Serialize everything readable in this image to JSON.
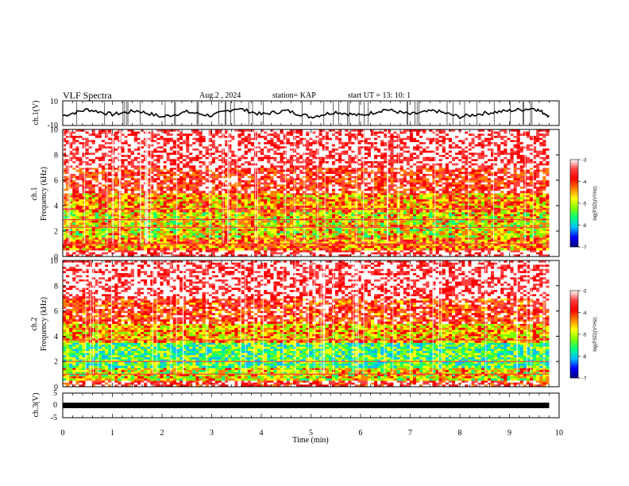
{
  "header": {
    "title": "VLF Spectra",
    "date": "Aug.2  , 2024",
    "station": "station= KAP",
    "start": "start  UT  =   13: 10: 1"
  },
  "colors": {
    "spectrogram_scale": [
      "#000080",
      "#0000ff",
      "#00bfff",
      "#00ff80",
      "#80ff00",
      "#ffff00",
      "#ff8000",
      "#ff0000",
      "#ff4040",
      "#ffffff"
    ],
    "trace": "#000000"
  },
  "chart_data": [
    {
      "id": "ch1-voltage",
      "type": "line",
      "ylabel": "ch.1(V)",
      "ylim": [
        -10,
        10
      ],
      "yticks": [
        "10",
        "-10"
      ],
      "x_range_min": [
        0,
        9.8
      ],
      "series": [
        {
          "x_min": [
            0,
            0.5,
            1,
            1.5,
            2,
            2.5,
            3,
            3.5,
            4,
            4.5,
            5,
            5.5,
            6,
            6.5,
            7,
            7.5,
            8,
            8.5,
            9,
            9.5,
            9.8
          ],
          "values": [
            -2,
            3,
            -1,
            2,
            -3,
            1,
            -2,
            4,
            -1,
            2,
            -3,
            1,
            -2,
            3,
            -1,
            2,
            -3,
            0,
            2,
            4,
            -2
          ]
        }
      ]
    },
    {
      "id": "ch1-spectrogram",
      "type": "heatmap",
      "ylabel": "ch.1\nFrequency  (kHz)",
      "ylim": [
        0,
        10
      ],
      "yticks": [
        "0",
        "2",
        "4",
        "6",
        "8",
        "10"
      ],
      "colorbar": {
        "label": "log(PSD)(V²/Hz)",
        "range": [
          -7,
          -3
        ],
        "ticks": [
          "-3",
          "-4",
          "-5",
          "-6",
          "-7"
        ]
      },
      "bands_kHz": [
        {
          "from": 0,
          "to": 0.5,
          "log_psd": -3.3
        },
        {
          "from": 0.5,
          "to": 1.5,
          "log_psd": -4.3
        },
        {
          "from": 1.5,
          "to": 3.5,
          "log_psd": -4.8
        },
        {
          "from": 3.5,
          "to": 5.0,
          "log_psd": -4.4
        },
        {
          "from": 5.0,
          "to": 7.0,
          "log_psd": -3.8
        },
        {
          "from": 7.0,
          "to": 10.0,
          "log_psd": -3.4
        }
      ],
      "lines_kHz": [
        1.0,
        2.3,
        2.9,
        3.7
      ]
    },
    {
      "id": "ch2-spectrogram",
      "type": "heatmap",
      "ylabel": "ch.2\nFrequency  (kHz)",
      "ylim": [
        0,
        10
      ],
      "yticks": [
        "0",
        "2",
        "4",
        "6",
        "8",
        "10"
      ],
      "colorbar": {
        "label": "log(PSD)(V²/Hz)",
        "range": [
          -7,
          -3
        ],
        "ticks": [
          "-3",
          "-4",
          "-5",
          "-6",
          "-7"
        ]
      },
      "bands_kHz": [
        {
          "from": 0,
          "to": 0.5,
          "log_psd": -3.6
        },
        {
          "from": 0.5,
          "to": 1.5,
          "log_psd": -4.8
        },
        {
          "from": 1.5,
          "to": 3.5,
          "log_psd": -5.4
        },
        {
          "from": 3.5,
          "to": 5.0,
          "log_psd": -4.6
        },
        {
          "from": 5.0,
          "to": 7.0,
          "log_psd": -3.9
        },
        {
          "from": 7.0,
          "to": 10.0,
          "log_psd": -3.4
        }
      ],
      "lines_kHz": [
        1.0,
        2.0,
        3.7
      ]
    },
    {
      "id": "ch3-voltage",
      "type": "line",
      "ylabel": "ch.3(V)",
      "ylim": [
        -5,
        5
      ],
      "yticks": [
        "5",
        "0",
        "-5"
      ],
      "x_range_min": [
        0,
        9.8
      ],
      "series": [
        {
          "x_min": [
            0,
            9.8
          ],
          "values": [
            0,
            0
          ]
        }
      ]
    }
  ],
  "xaxis": {
    "label": "Time  (min)",
    "ticks": [
      "0",
      "1",
      "2",
      "3",
      "4",
      "5",
      "6",
      "7",
      "8",
      "9",
      "10"
    ],
    "xlim": [
      0,
      10
    ]
  }
}
